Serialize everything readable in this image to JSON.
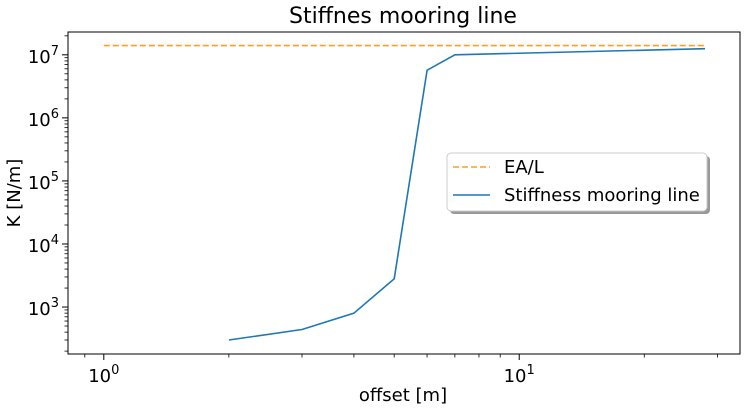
{
  "chart_data": {
    "type": "line",
    "title": "Stiffnes mooring line",
    "xlabel": "offset [m]",
    "ylabel": "K [N/m]",
    "xscale": "log",
    "yscale": "log",
    "xlim": [
      0.82,
      34
    ],
    "ylim": [
      180,
      23000000
    ],
    "x_ticks": [
      {
        "base": "10",
        "exp": "0",
        "value": 1
      },
      {
        "base": "10",
        "exp": "1",
        "value": 10
      }
    ],
    "y_ticks": [
      {
        "base": "10",
        "exp": "3",
        "value": 1000
      },
      {
        "base": "10",
        "exp": "4",
        "value": 10000
      },
      {
        "base": "10",
        "exp": "5",
        "value": 100000
      },
      {
        "base": "10",
        "exp": "6",
        "value": 1000000
      },
      {
        "base": "10",
        "exp": "7",
        "value": 10000000
      }
    ],
    "grid": false,
    "legend_position": "center-right",
    "series": [
      {
        "name": "EA/L",
        "color": "#ff9f1c",
        "style": "dashed",
        "x": [
          1,
          28
        ],
        "y": [
          14000000,
          14000000
        ]
      },
      {
        "name": "Stiffness mooring line",
        "color": "#1f77b4",
        "style": "solid",
        "x": [
          2,
          3,
          4,
          5,
          6,
          7,
          28
        ],
        "y": [
          300,
          440,
          800,
          2800,
          5700000,
          10000000,
          12500000
        ]
      }
    ]
  }
}
